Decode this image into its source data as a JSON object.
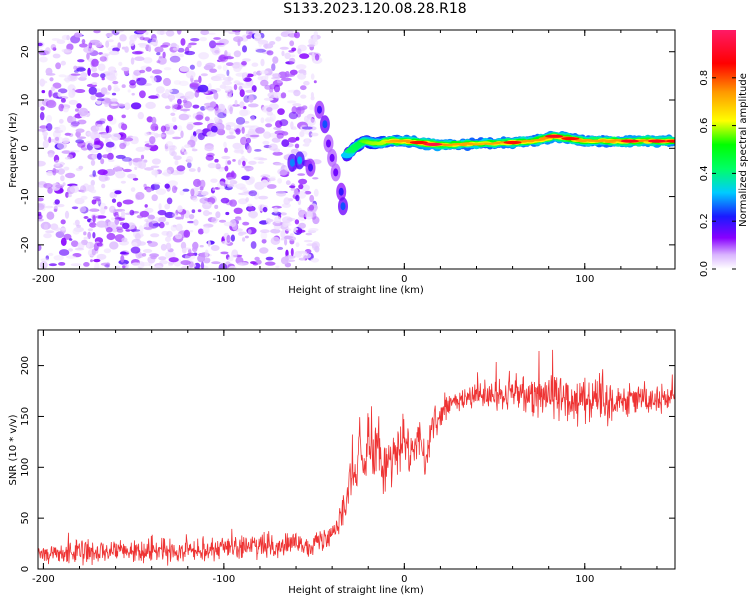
{
  "title": "S133.2023.120.08.28.R18",
  "chart_data": [
    {
      "type": "heatmap",
      "xlabel": "Height of straight line (km)",
      "ylabel": "Frequency (Hz)",
      "xlim": [
        -203,
        150
      ],
      "ylim": [
        -25,
        24.5
      ],
      "xticks": [
        -200,
        -100,
        0,
        100
      ],
      "yticks": [
        -20,
        -10,
        0,
        10,
        20
      ],
      "colorbar": {
        "label": "Normalized spectral amplitude",
        "range": [
          0,
          1
        ],
        "ticks": [
          "0.0",
          "0.2",
          "0.4",
          "0.6",
          "0.8"
        ],
        "tick_values": [
          0.0,
          0.2,
          0.4,
          0.6,
          0.8
        ]
      },
      "noise_region_x": [
        -203,
        -48
      ],
      "slant_band": [
        {
          "x": -62,
          "y": -3,
          "v": 0.28
        },
        {
          "x": -58,
          "y": -2.5,
          "v": 0.3
        },
        {
          "x": -52,
          "y": -4,
          "v": 0.18
        },
        {
          "x": -47,
          "y": 8,
          "v": 0.18
        },
        {
          "x": -44,
          "y": 5,
          "v": 0.25
        },
        {
          "x": -42,
          "y": 1,
          "v": 0.15
        },
        {
          "x": -40,
          "y": -2,
          "v": 0.15
        },
        {
          "x": -38,
          "y": -5,
          "v": 0.15
        },
        {
          "x": -35,
          "y": -9,
          "v": 0.2
        },
        {
          "x": -34,
          "y": -12,
          "v": 0.25
        }
      ],
      "ridge": [
        {
          "x": -32,
          "y": -1.5,
          "v": 0.35
        },
        {
          "x": -28,
          "y": 0,
          "v": 0.45
        },
        {
          "x": -22,
          "y": 1.5,
          "v": 0.55
        },
        {
          "x": -15,
          "y": 1,
          "v": 0.6
        },
        {
          "x": -8,
          "y": 1.5,
          "v": 0.7
        },
        {
          "x": 0,
          "y": 1.5,
          "v": 0.75
        },
        {
          "x": 8,
          "y": 1.2,
          "v": 0.8
        },
        {
          "x": 16,
          "y": 0.8,
          "v": 0.9
        },
        {
          "x": 30,
          "y": 0.8,
          "v": 0.75
        },
        {
          "x": 45,
          "y": 1,
          "v": 0.7
        },
        {
          "x": 60,
          "y": 1.2,
          "v": 0.8
        },
        {
          "x": 72,
          "y": 1.5,
          "v": 0.75
        },
        {
          "x": 83,
          "y": 2.5,
          "v": 0.85
        },
        {
          "x": 92,
          "y": 2,
          "v": 0.8
        },
        {
          "x": 100,
          "y": 1.5,
          "v": 0.75
        },
        {
          "x": 112,
          "y": 1.5,
          "v": 0.75
        },
        {
          "x": 125,
          "y": 1.5,
          "v": 0.85
        },
        {
          "x": 140,
          "y": 1.5,
          "v": 0.85
        },
        {
          "x": 150,
          "y": 1.5,
          "v": 0.8
        }
      ]
    },
    {
      "type": "line",
      "xlabel": "Height of straight line (km)",
      "ylabel": "SNR (10 * v/v)",
      "xlim": [
        -203,
        150
      ],
      "ylim": [
        0,
        235
      ],
      "xticks": [
        -200,
        -100,
        0,
        100
      ],
      "yticks": [
        0,
        50,
        100,
        150,
        200
      ],
      "color": "#ee3333",
      "series": [
        {
          "x": [
            -203,
            -190,
            -175,
            -160,
            -150,
            -140,
            -130,
            -120,
            -110,
            -100,
            -90,
            -80,
            -70,
            -60,
            -55,
            -50,
            -45,
            -40,
            -35,
            -32,
            -30,
            -27,
            -25,
            -22,
            -20,
            -17,
            -15,
            -12,
            -10,
            -7,
            -5,
            -2,
            0,
            3,
            5,
            8,
            10,
            12,
            15,
            18,
            20,
            23,
            25,
            28,
            30,
            35,
            40,
            50,
            60,
            70,
            80,
            90,
            100,
            110,
            120,
            130,
            140,
            150
          ],
          "y": [
            15,
            15,
            16,
            17,
            17,
            18,
            18,
            19,
            20,
            21,
            22,
            22,
            23,
            24,
            24,
            25,
            28,
            35,
            55,
            70,
            95,
            80,
            120,
            100,
            140,
            110,
            130,
            95,
            100,
            110,
            105,
            120,
            125,
            110,
            120,
            130,
            115,
            100,
            140,
            145,
            150,
            158,
            160,
            163,
            165,
            168,
            170,
            170,
            172,
            174,
            172,
            168,
            170,
            165,
            167,
            168,
            165,
            170
          ]
        }
      ],
      "noise_amplitude": [
        {
          "x": -203,
          "a": 10
        },
        {
          "x": -40,
          "a": 10
        },
        {
          "x": -30,
          "a": 22
        },
        {
          "x": 0,
          "a": 22
        },
        {
          "x": 20,
          "a": 12
        },
        {
          "x": 40,
          "a": 12
        },
        {
          "x": 60,
          "a": 14
        },
        {
          "x": 80,
          "a": 22
        },
        {
          "x": 100,
          "a": 22
        },
        {
          "x": 120,
          "a": 15
        },
        {
          "x": 150,
          "a": 12
        }
      ]
    }
  ]
}
